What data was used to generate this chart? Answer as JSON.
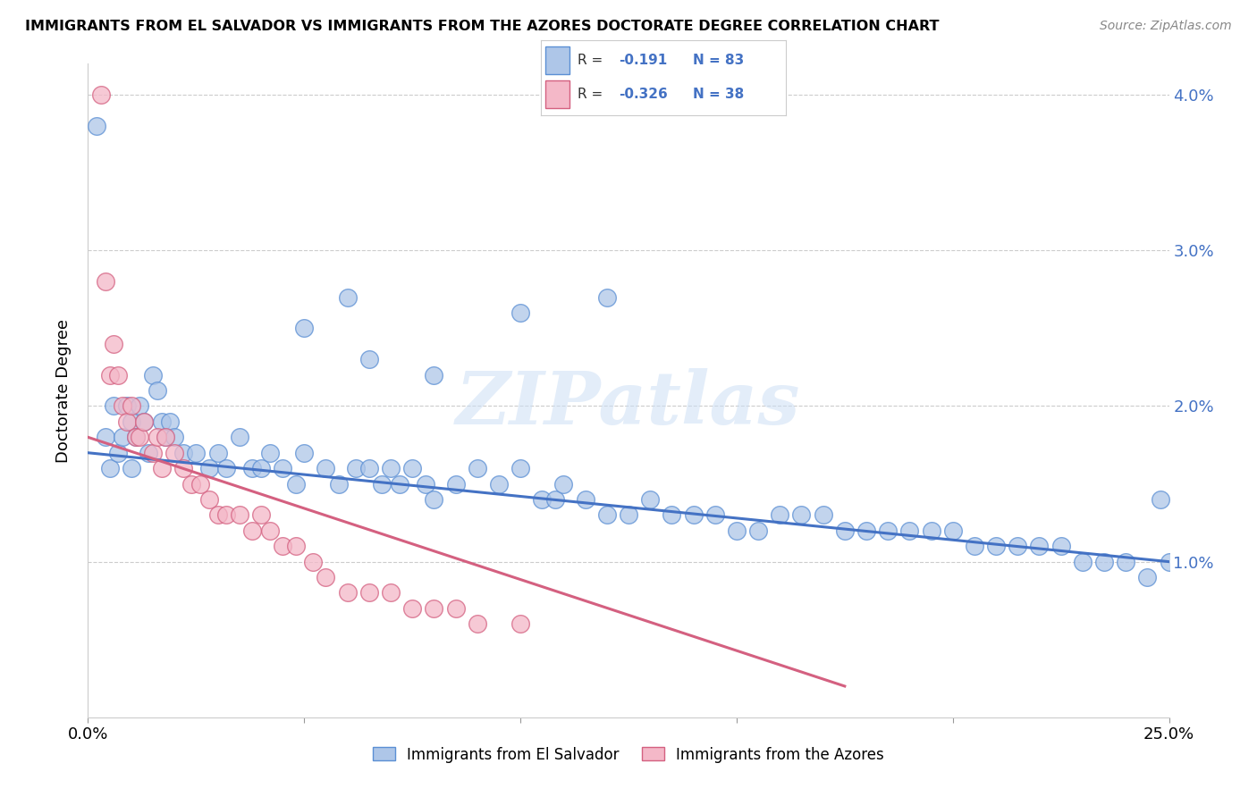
{
  "title": "IMMIGRANTS FROM EL SALVADOR VS IMMIGRANTS FROM THE AZORES DOCTORATE DEGREE CORRELATION CHART",
  "source": "Source: ZipAtlas.com",
  "ylabel": "Doctorate Degree",
  "xlim": [
    0.0,
    0.25
  ],
  "ylim": [
    0.0,
    0.042
  ],
  "blue_R": "-0.191",
  "blue_N": "83",
  "pink_R": "-0.326",
  "pink_N": "38",
  "blue_color": "#aec6e8",
  "pink_color": "#f4b8c8",
  "blue_edge_color": "#5b8fd4",
  "pink_edge_color": "#d46080",
  "blue_line_color": "#4472c4",
  "pink_line_color": "#d46080",
  "watermark": "ZIPatlas",
  "blue_scatter_x": [
    0.002,
    0.004,
    0.005,
    0.006,
    0.007,
    0.008,
    0.009,
    0.01,
    0.01,
    0.011,
    0.012,
    0.013,
    0.014,
    0.015,
    0.016,
    0.017,
    0.018,
    0.019,
    0.02,
    0.022,
    0.025,
    0.028,
    0.03,
    0.032,
    0.035,
    0.038,
    0.04,
    0.042,
    0.045,
    0.048,
    0.05,
    0.055,
    0.058,
    0.06,
    0.062,
    0.065,
    0.068,
    0.07,
    0.072,
    0.075,
    0.078,
    0.08,
    0.085,
    0.09,
    0.095,
    0.1,
    0.105,
    0.108,
    0.11,
    0.115,
    0.12,
    0.125,
    0.13,
    0.135,
    0.14,
    0.145,
    0.15,
    0.155,
    0.16,
    0.165,
    0.17,
    0.175,
    0.18,
    0.185,
    0.19,
    0.195,
    0.2,
    0.205,
    0.21,
    0.215,
    0.22,
    0.225,
    0.23,
    0.235,
    0.24,
    0.245,
    0.248,
    0.25,
    0.1,
    0.12,
    0.05,
    0.065,
    0.08
  ],
  "blue_scatter_y": [
    0.038,
    0.018,
    0.016,
    0.02,
    0.017,
    0.018,
    0.02,
    0.019,
    0.016,
    0.018,
    0.02,
    0.019,
    0.017,
    0.022,
    0.021,
    0.019,
    0.018,
    0.019,
    0.018,
    0.017,
    0.017,
    0.016,
    0.017,
    0.016,
    0.018,
    0.016,
    0.016,
    0.017,
    0.016,
    0.015,
    0.017,
    0.016,
    0.015,
    0.027,
    0.016,
    0.016,
    0.015,
    0.016,
    0.015,
    0.016,
    0.015,
    0.014,
    0.015,
    0.016,
    0.015,
    0.016,
    0.014,
    0.014,
    0.015,
    0.014,
    0.013,
    0.013,
    0.014,
    0.013,
    0.013,
    0.013,
    0.012,
    0.012,
    0.013,
    0.013,
    0.013,
    0.012,
    0.012,
    0.012,
    0.012,
    0.012,
    0.012,
    0.011,
    0.011,
    0.011,
    0.011,
    0.011,
    0.01,
    0.01,
    0.01,
    0.009,
    0.014,
    0.01,
    0.026,
    0.027,
    0.025,
    0.023,
    0.022
  ],
  "pink_scatter_x": [
    0.003,
    0.004,
    0.005,
    0.006,
    0.007,
    0.008,
    0.009,
    0.01,
    0.011,
    0.012,
    0.013,
    0.015,
    0.016,
    0.017,
    0.018,
    0.02,
    0.022,
    0.024,
    0.026,
    0.028,
    0.03,
    0.032,
    0.035,
    0.038,
    0.04,
    0.042,
    0.045,
    0.048,
    0.052,
    0.055,
    0.06,
    0.065,
    0.07,
    0.075,
    0.08,
    0.085,
    0.09,
    0.1
  ],
  "pink_scatter_y": [
    0.04,
    0.028,
    0.022,
    0.024,
    0.022,
    0.02,
    0.019,
    0.02,
    0.018,
    0.018,
    0.019,
    0.017,
    0.018,
    0.016,
    0.018,
    0.017,
    0.016,
    0.015,
    0.015,
    0.014,
    0.013,
    0.013,
    0.013,
    0.012,
    0.013,
    0.012,
    0.011,
    0.011,
    0.01,
    0.009,
    0.008,
    0.008,
    0.008,
    0.007,
    0.007,
    0.007,
    0.006,
    0.006
  ],
  "blue_line_x0": 0.0,
  "blue_line_x1": 0.25,
  "blue_line_y0": 0.017,
  "blue_line_y1": 0.01,
  "pink_line_x0": 0.0,
  "pink_line_x1": 0.175,
  "pink_line_y0": 0.018,
  "pink_line_y1": 0.002
}
